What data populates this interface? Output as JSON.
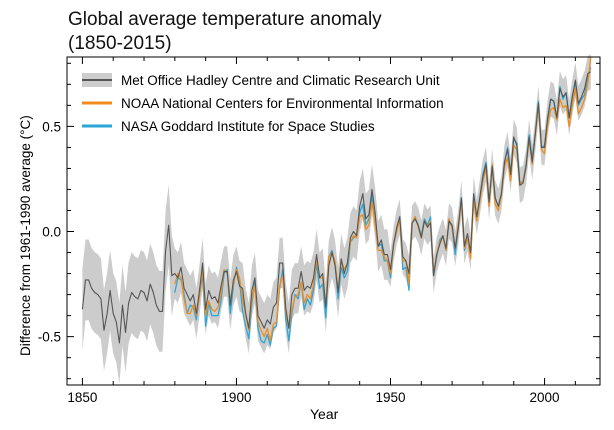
{
  "chart_data": {
    "type": "line",
    "title": "Global average temperature anomaly",
    "subtitle": "(1850-2015)",
    "xlabel": "Year",
    "ylabel": "Difference from 1961-1990 average (°C)",
    "xlim": [
      1845,
      2018
    ],
    "ylim": [
      -0.73,
      0.83
    ],
    "xticks": [
      1850,
      1900,
      1950,
      2000
    ],
    "yticks": [
      -0.5,
      0.0,
      0.5
    ],
    "xtick_labels": [
      "1850",
      "1900",
      "1950",
      "2000"
    ],
    "ytick_labels": [
      "-0.5",
      "0.0",
      "0.5"
    ],
    "grid": false,
    "legend_position": "top-left",
    "series": [
      {
        "name": "Met Office Hadley Centre and Climatic Research Unit",
        "color": "#555555",
        "uncertainty_color": "#cccccc",
        "uncertainty": 0.12,
        "x": [
          1850,
          1851,
          1852,
          1853,
          1854,
          1855,
          1856,
          1857,
          1858,
          1859,
          1860,
          1861,
          1862,
          1863,
          1864,
          1865,
          1866,
          1867,
          1868,
          1869,
          1870,
          1871,
          1872,
          1873,
          1874,
          1875,
          1876,
          1877,
          1878,
          1879,
          1880,
          1881,
          1882,
          1883,
          1884,
          1885,
          1886,
          1887,
          1888,
          1889,
          1890,
          1891,
          1892,
          1893,
          1894,
          1895,
          1896,
          1897,
          1898,
          1899,
          1900,
          1901,
          1902,
          1903,
          1904,
          1905,
          1906,
          1907,
          1908,
          1909,
          1910,
          1911,
          1912,
          1913,
          1914,
          1915,
          1916,
          1917,
          1918,
          1919,
          1920,
          1921,
          1922,
          1923,
          1924,
          1925,
          1926,
          1927,
          1928,
          1929,
          1930,
          1931,
          1932,
          1933,
          1934,
          1935,
          1936,
          1937,
          1938,
          1939,
          1940,
          1941,
          1942,
          1943,
          1944,
          1945,
          1946,
          1947,
          1948,
          1949,
          1950,
          1951,
          1952,
          1953,
          1954,
          1955,
          1956,
          1957,
          1958,
          1959,
          1960,
          1961,
          1962,
          1963,
          1964,
          1965,
          1966,
          1967,
          1968,
          1969,
          1970,
          1971,
          1972,
          1973,
          1974,
          1975,
          1976,
          1977,
          1978,
          1979,
          1980,
          1981,
          1982,
          1983,
          1984,
          1985,
          1986,
          1987,
          1988,
          1989,
          1990,
          1991,
          1992,
          1993,
          1994,
          1995,
          1996,
          1997,
          1998,
          1999,
          2000,
          2001,
          2002,
          2003,
          2004,
          2005,
          2006,
          2007,
          2008,
          2009,
          2010,
          2011,
          2012,
          2013,
          2014,
          2015
        ],
        "values": [
          -0.37,
          -0.23,
          -0.23,
          -0.27,
          -0.29,
          -0.3,
          -0.32,
          -0.47,
          -0.39,
          -0.28,
          -0.39,
          -0.43,
          -0.53,
          -0.35,
          -0.48,
          -0.34,
          -0.29,
          -0.31,
          -0.32,
          -0.28,
          -0.29,
          -0.33,
          -0.25,
          -0.29,
          -0.35,
          -0.38,
          -0.38,
          -0.09,
          0.03,
          -0.21,
          -0.2,
          -0.22,
          -0.17,
          -0.27,
          -0.3,
          -0.33,
          -0.3,
          -0.39,
          -0.28,
          -0.15,
          -0.37,
          -0.28,
          -0.32,
          -0.31,
          -0.34,
          -0.26,
          -0.19,
          -0.19,
          -0.35,
          -0.23,
          -0.19,
          -0.26,
          -0.27,
          -0.39,
          -0.46,
          -0.28,
          -0.22,
          -0.4,
          -0.43,
          -0.46,
          -0.42,
          -0.44,
          -0.36,
          -0.34,
          -0.15,
          -0.15,
          -0.36,
          -0.46,
          -0.3,
          -0.27,
          -0.27,
          -0.19,
          -0.28,
          -0.26,
          -0.27,
          -0.22,
          -0.11,
          -0.22,
          -0.2,
          -0.36,
          -0.16,
          -0.1,
          -0.16,
          -0.29,
          -0.13,
          -0.2,
          -0.15,
          -0.03,
          0.0,
          -0.02,
          0.12,
          0.18,
          0.06,
          0.08,
          0.2,
          0.09,
          -0.07,
          -0.04,
          -0.11,
          -0.11,
          -0.18,
          -0.06,
          0.02,
          0.07,
          -0.12,
          -0.14,
          -0.2,
          0.04,
          0.06,
          0.03,
          -0.03,
          0.05,
          0.02,
          0.04,
          -0.21,
          -0.11,
          -0.06,
          -0.02,
          -0.08,
          0.05,
          0.03,
          -0.08,
          0.02,
          0.16,
          -0.07,
          -0.01,
          -0.1,
          0.18,
          0.07,
          0.16,
          0.26,
          0.32,
          0.14,
          0.31,
          0.16,
          0.12,
          0.18,
          0.33,
          0.39,
          0.27,
          0.45,
          0.41,
          0.22,
          0.23,
          0.31,
          0.45,
          0.33,
          0.46,
          0.61,
          0.4,
          0.4,
          0.54,
          0.63,
          0.62,
          0.54,
          0.68,
          0.64,
          0.66,
          0.54,
          0.64,
          0.72,
          0.61,
          0.64,
          0.68,
          0.75,
          0.76
        ]
      },
      {
        "name": "NOAA National Centers for Environmental Information",
        "color": "#f08c1e",
        "x": [
          1880,
          1881,
          1882,
          1883,
          1884,
          1885,
          1886,
          1887,
          1888,
          1889,
          1890,
          1891,
          1892,
          1893,
          1894,
          1895,
          1896,
          1897,
          1898,
          1899,
          1900,
          1901,
          1902,
          1903,
          1904,
          1905,
          1906,
          1907,
          1908,
          1909,
          1910,
          1911,
          1912,
          1913,
          1914,
          1915,
          1916,
          1917,
          1918,
          1919,
          1920,
          1921,
          1922,
          1923,
          1924,
          1925,
          1926,
          1927,
          1928,
          1929,
          1930,
          1931,
          1932,
          1933,
          1934,
          1935,
          1936,
          1937,
          1938,
          1939,
          1940,
          1941,
          1942,
          1943,
          1944,
          1945,
          1946,
          1947,
          1948,
          1949,
          1950,
          1951,
          1952,
          1953,
          1954,
          1955,
          1956,
          1957,
          1958,
          1959,
          1960,
          1961,
          1962,
          1963,
          1964,
          1965,
          1966,
          1967,
          1968,
          1969,
          1970,
          1971,
          1972,
          1973,
          1974,
          1975,
          1976,
          1977,
          1978,
          1979,
          1980,
          1981,
          1982,
          1983,
          1984,
          1985,
          1986,
          1987,
          1988,
          1989,
          1990,
          1991,
          1992,
          1993,
          1994,
          1995,
          1996,
          1997,
          1998,
          1999,
          2000,
          2001,
          2002,
          2003,
          2004,
          2005,
          2006,
          2007,
          2008,
          2009,
          2010,
          2011,
          2012,
          2013,
          2014,
          2015
        ],
        "values": [
          -0.25,
          -0.2,
          -0.22,
          -0.32,
          -0.39,
          -0.39,
          -0.35,
          -0.4,
          -0.31,
          -0.18,
          -0.4,
          -0.33,
          -0.37,
          -0.38,
          -0.36,
          -0.3,
          -0.18,
          -0.2,
          -0.33,
          -0.25,
          -0.18,
          -0.22,
          -0.32,
          -0.4,
          -0.47,
          -0.32,
          -0.26,
          -0.43,
          -0.47,
          -0.5,
          -0.46,
          -0.52,
          -0.44,
          -0.43,
          -0.26,
          -0.21,
          -0.38,
          -0.46,
          -0.37,
          -0.31,
          -0.3,
          -0.24,
          -0.34,
          -0.3,
          -0.32,
          -0.25,
          -0.13,
          -0.22,
          -0.22,
          -0.35,
          -0.12,
          -0.1,
          -0.14,
          -0.28,
          -0.14,
          -0.18,
          -0.15,
          -0.05,
          -0.02,
          -0.03,
          0.07,
          0.08,
          0.01,
          0.03,
          0.14,
          0.04,
          -0.09,
          -0.09,
          -0.12,
          -0.14,
          -0.2,
          -0.06,
          0.0,
          0.06,
          -0.14,
          -0.14,
          -0.25,
          0.04,
          0.07,
          0.02,
          -0.03,
          0.05,
          0.02,
          0.05,
          -0.2,
          -0.11,
          -0.05,
          -0.02,
          -0.09,
          0.06,
          0.02,
          -0.08,
          0.04,
          0.14,
          -0.08,
          -0.03,
          -0.13,
          0.15,
          0.05,
          0.14,
          0.24,
          0.3,
          0.12,
          0.32,
          0.13,
          0.1,
          0.17,
          0.31,
          0.35,
          0.24,
          0.41,
          0.39,
          0.22,
          0.24,
          0.31,
          0.44,
          0.32,
          0.47,
          0.6,
          0.39,
          0.37,
          0.5,
          0.58,
          0.59,
          0.53,
          0.63,
          0.59,
          0.6,
          0.5,
          0.6,
          0.68,
          0.56,
          0.59,
          0.63,
          0.7,
          0.83
        ]
      },
      {
        "name": "NASA Goddard Institute for Space Studies",
        "color": "#2ba6d6",
        "x": [
          1880,
          1881,
          1882,
          1883,
          1884,
          1885,
          1886,
          1887,
          1888,
          1889,
          1890,
          1891,
          1892,
          1893,
          1894,
          1895,
          1896,
          1897,
          1898,
          1899,
          1900,
          1901,
          1902,
          1903,
          1904,
          1905,
          1906,
          1907,
          1908,
          1909,
          1910,
          1911,
          1912,
          1913,
          1914,
          1915,
          1916,
          1917,
          1918,
          1919,
          1920,
          1921,
          1922,
          1923,
          1924,
          1925,
          1926,
          1927,
          1928,
          1929,
          1930,
          1931,
          1932,
          1933,
          1934,
          1935,
          1936,
          1937,
          1938,
          1939,
          1940,
          1941,
          1942,
          1943,
          1944,
          1945,
          1946,
          1947,
          1948,
          1949,
          1950,
          1951,
          1952,
          1953,
          1954,
          1955,
          1956,
          1957,
          1958,
          1959,
          1960,
          1961,
          1962,
          1963,
          1964,
          1965,
          1966,
          1967,
          1968,
          1969,
          1970,
          1971,
          1972,
          1973,
          1974,
          1975,
          1976,
          1977,
          1978,
          1979,
          1980,
          1981,
          1982,
          1983,
          1984,
          1985,
          1986,
          1987,
          1988,
          1989,
          1990,
          1991,
          1992,
          1993,
          1994,
          1995,
          1996,
          1997,
          1998,
          1999,
          2000,
          2001,
          2002,
          2003,
          2004,
          2005,
          2006,
          2007,
          2008,
          2009,
          2010,
          2011,
          2012,
          2013,
          2014,
          2015
        ],
        "values": [
          -0.29,
          -0.22,
          -0.23,
          -0.3,
          -0.39,
          -0.35,
          -0.36,
          -0.42,
          -0.3,
          -0.21,
          -0.45,
          -0.34,
          -0.4,
          -0.4,
          -0.4,
          -0.33,
          -0.2,
          -0.18,
          -0.39,
          -0.26,
          -0.17,
          -0.23,
          -0.38,
          -0.45,
          -0.51,
          -0.34,
          -0.24,
          -0.46,
          -0.52,
          -0.53,
          -0.49,
          -0.54,
          -0.46,
          -0.45,
          -0.27,
          -0.18,
          -0.41,
          -0.52,
          -0.39,
          -0.3,
          -0.32,
          -0.24,
          -0.37,
          -0.32,
          -0.35,
          -0.28,
          -0.15,
          -0.27,
          -0.25,
          -0.41,
          -0.12,
          -0.09,
          -0.15,
          -0.32,
          -0.17,
          -0.22,
          -0.19,
          -0.05,
          -0.03,
          -0.02,
          0.09,
          0.13,
          0.03,
          0.06,
          0.17,
          0.04,
          -0.07,
          -0.06,
          -0.14,
          -0.14,
          -0.22,
          -0.06,
          0.0,
          0.07,
          -0.18,
          -0.17,
          -0.28,
          0.04,
          0.07,
          0.03,
          -0.02,
          0.06,
          0.03,
          0.07,
          -0.21,
          -0.12,
          -0.04,
          -0.02,
          -0.09,
          0.05,
          0.02,
          -0.11,
          0.02,
          0.16,
          -0.09,
          -0.03,
          -0.12,
          0.17,
          0.06,
          0.16,
          0.27,
          0.33,
          0.13,
          0.31,
          0.16,
          0.12,
          0.18,
          0.33,
          0.4,
          0.28,
          0.44,
          0.42,
          0.23,
          0.24,
          0.32,
          0.46,
          0.35,
          0.47,
          0.62,
          0.4,
          0.41,
          0.53,
          0.63,
          0.62,
          0.54,
          0.69,
          0.63,
          0.66,
          0.54,
          0.64,
          0.71,
          0.6,
          0.63,
          0.65,
          0.74,
          0.78
        ]
      }
    ]
  }
}
